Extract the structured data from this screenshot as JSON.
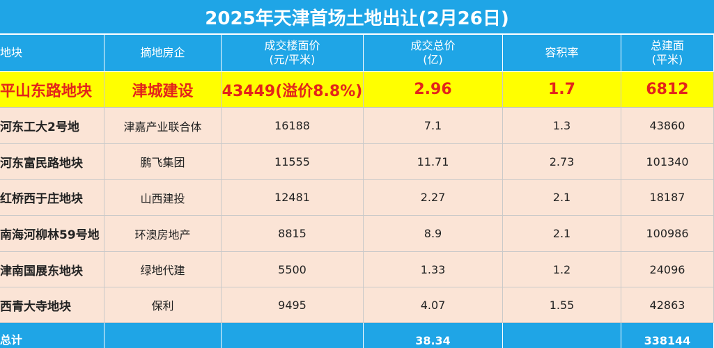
{
  "title": "2025年天津首场土地出让(2月26日)",
  "table": {
    "header": [
      [
        "地块"
      ],
      [
        "摘地房企"
      ],
      [
        "成交楼面价",
        "(元/平米)"
      ],
      [
        "成交总价",
        "(亿)"
      ],
      [
        "容积率"
      ],
      [
        "总建面",
        "(平米)"
      ]
    ],
    "highlight": [
      "平山东路地块",
      "津城建设",
      "43449(溢价8.8%)",
      "2.96",
      "1.7",
      "6812"
    ],
    "rows": [
      [
        "河东工大2号地",
        "津嘉产业联合体",
        "16188",
        "7.1",
        "1.3",
        "43860"
      ],
      [
        "河东富民路地块",
        "鹏飞集团",
        "11555",
        "11.71",
        "2.73",
        "101340"
      ],
      [
        "红桥西于庄地块",
        "山西建投",
        "12481",
        "2.27",
        "2.1",
        "18187"
      ],
      [
        "南海河柳林59号地",
        "环澳房地产",
        "8815",
        "8.9",
        "2.1",
        "100986"
      ],
      [
        "津南国展东地块",
        "绿地代建",
        "5500",
        "1.33",
        "1.2",
        "24096"
      ],
      [
        "西青大寺地块",
        "保利",
        "9495",
        "4.07",
        "1.55",
        "42863"
      ]
    ],
    "total": {
      "label": "总计",
      "total_price": "38.34",
      "total_area": "338144"
    }
  }
}
